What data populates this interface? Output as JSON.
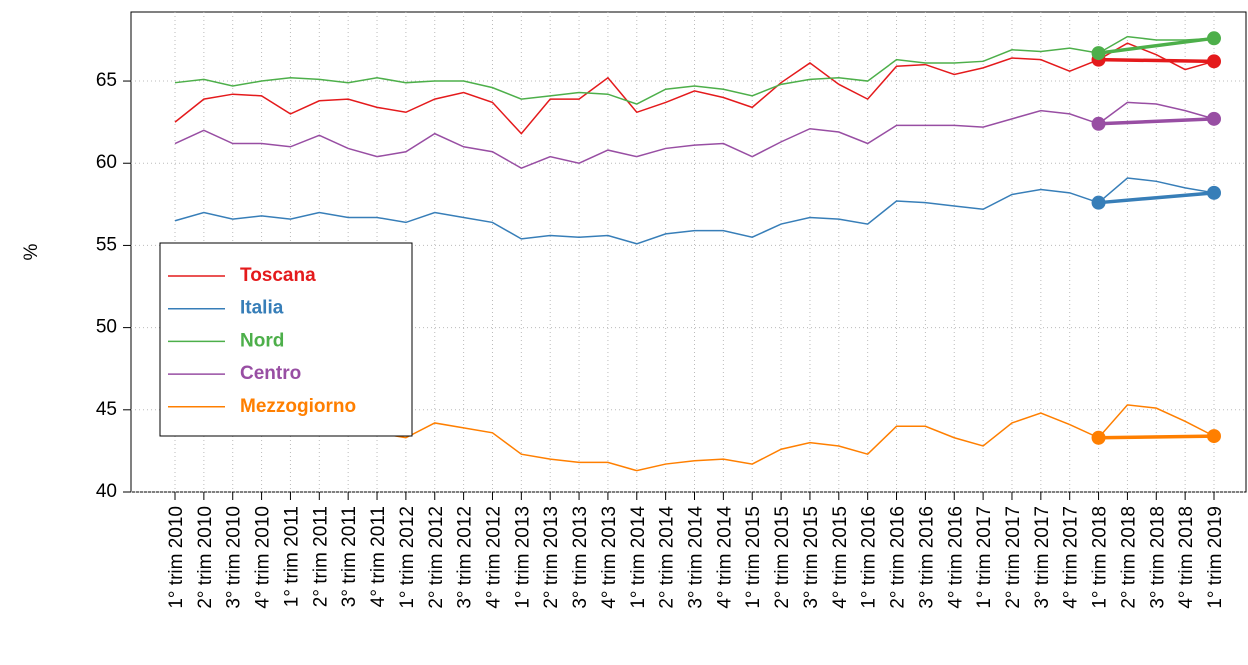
{
  "chart_data": {
    "type": "line",
    "y_label": "%",
    "categories": [
      "1° trim 2010",
      "2° trim 2010",
      "3° trim 2010",
      "4° trim 2010",
      "1° trim 2011",
      "2° trim 2011",
      "3° trim 2011",
      "4° trim 2011",
      "1° trim 2012",
      "2° trim 2012",
      "3° trim 2012",
      "4° trim 2012",
      "1° trim 2013",
      "2° trim 2013",
      "3° trim 2013",
      "4° trim 2013",
      "1° trim 2014",
      "2° trim 2014",
      "3° trim 2014",
      "4° trim 2014",
      "1° trim 2015",
      "2° trim 2015",
      "3° trim 2015",
      "4° trim 2015",
      "1° trim 2016",
      "2° trim 2016",
      "3° trim 2016",
      "4° trim 2016",
      "1° trim 2017",
      "2° trim 2017",
      "3° trim 2017",
      "4° trim 2017",
      "1° trim 2018",
      "2° trim 2018",
      "3° trim 2018",
      "4° trim 2018",
      "1° trim 2019"
    ],
    "series": [
      {
        "name": "Toscana",
        "color": "#e41a1c",
        "values": [
          62.5,
          63.9,
          64.2,
          64.1,
          63.0,
          63.8,
          63.9,
          63.4,
          63.1,
          63.9,
          64.3,
          63.7,
          61.8,
          63.9,
          63.9,
          65.2,
          63.1,
          63.7,
          64.4,
          64.0,
          63.4,
          64.9,
          66.1,
          64.8,
          63.9,
          65.9,
          66.0,
          65.4,
          65.8,
          66.4,
          66.3,
          65.6,
          66.3,
          67.3,
          66.6,
          65.7,
          66.2
        ]
      },
      {
        "name": "Italia",
        "color": "#377eb8",
        "values": [
          56.5,
          57.0,
          56.6,
          56.8,
          56.6,
          57.0,
          56.7,
          56.7,
          56.4,
          57.0,
          56.7,
          56.4,
          55.4,
          55.6,
          55.5,
          55.6,
          55.1,
          55.7,
          55.9,
          55.9,
          55.5,
          56.3,
          56.7,
          56.6,
          56.3,
          57.7,
          57.6,
          57.4,
          57.2,
          58.1,
          58.4,
          58.2,
          57.6,
          59.1,
          58.9,
          58.5,
          58.2
        ]
      },
      {
        "name": "Nord",
        "color": "#4daf4a",
        "values": [
          64.9,
          65.1,
          64.7,
          65.0,
          65.2,
          65.1,
          64.9,
          65.2,
          64.9,
          65.0,
          65.0,
          64.6,
          63.9,
          64.1,
          64.3,
          64.2,
          63.6,
          64.5,
          64.7,
          64.5,
          64.1,
          64.8,
          65.1,
          65.2,
          65.0,
          66.3,
          66.1,
          66.1,
          66.2,
          66.9,
          66.8,
          67.0,
          66.7,
          67.7,
          67.5,
          67.5,
          67.6
        ]
      },
      {
        "name": "Centro",
        "color": "#984ea3",
        "values": [
          61.2,
          62.0,
          61.2,
          61.2,
          61.0,
          61.7,
          60.9,
          60.4,
          60.7,
          61.8,
          61.0,
          60.7,
          59.7,
          60.4,
          60.0,
          60.8,
          60.4,
          60.9,
          61.1,
          61.2,
          60.4,
          61.3,
          62.1,
          61.9,
          61.2,
          62.3,
          62.3,
          62.3,
          62.2,
          62.7,
          63.2,
          63.0,
          62.4,
          63.7,
          63.6,
          63.2,
          62.7
        ]
      },
      {
        "name": "Mezzogiorno",
        "color": "#ff7f00",
        "values": [
          43.5,
          43.8,
          43.6,
          43.9,
          43.7,
          44.0,
          43.8,
          43.6,
          43.3,
          44.2,
          43.9,
          43.6,
          42.3,
          42.0,
          41.8,
          41.8,
          41.3,
          41.7,
          41.9,
          42.0,
          41.7,
          42.6,
          43.0,
          42.8,
          42.3,
          44.0,
          44.0,
          43.3,
          42.8,
          44.2,
          44.8,
          44.1,
          43.3,
          45.3,
          45.1,
          44.3,
          43.4
        ]
      }
    ],
    "ylim": [
      40,
      69.2
    ],
    "yticks": [
      40,
      45,
      50,
      55,
      60,
      65
    ],
    "grid": true,
    "legend": "left"
  }
}
